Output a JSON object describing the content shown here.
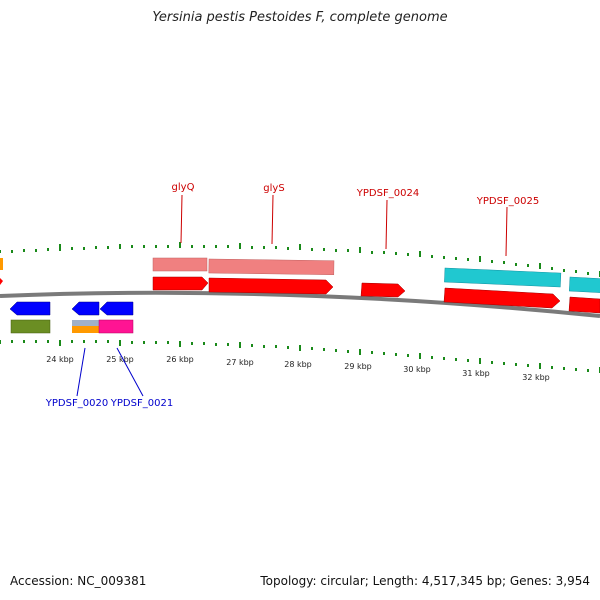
{
  "title": "Yersinia pestis Pestoides F, complete genome",
  "accession": "Accession: NC_009381",
  "summary": "Topology: circular; Length: 4,517,345 bp; Genes: 3,954",
  "kbp_labels": [
    "24 kbp",
    "25 kbp",
    "26 kbp",
    "27 kbp",
    "28 kbp",
    "29 kbp",
    "30 kbp",
    "31 kbp",
    "32 kbp"
  ],
  "gene_labels": {
    "glyQ": "glyQ",
    "glyS": "glyS",
    "ypdsf_0024": "YPDSF_0024",
    "ypdsf_0025": "YPDSF_0025",
    "ypdsf_0020": "YPDSF_0020",
    "ypdsf_0021": "YPDSF_0021"
  },
  "colors": {
    "forward_cds": "#ff0000",
    "reverse_cds": "#0000ff",
    "pink_feature": "#f08080",
    "cyan_feature": "#20c8d0",
    "olive_feature": "#6b8e23",
    "orange_feature": "#ff9900",
    "magenta_feature": "#ff1493",
    "tick": "#1a8a1a",
    "backbone": "#808080",
    "forward_label": "#cc0000",
    "reverse_label": "#0000cc"
  }
}
